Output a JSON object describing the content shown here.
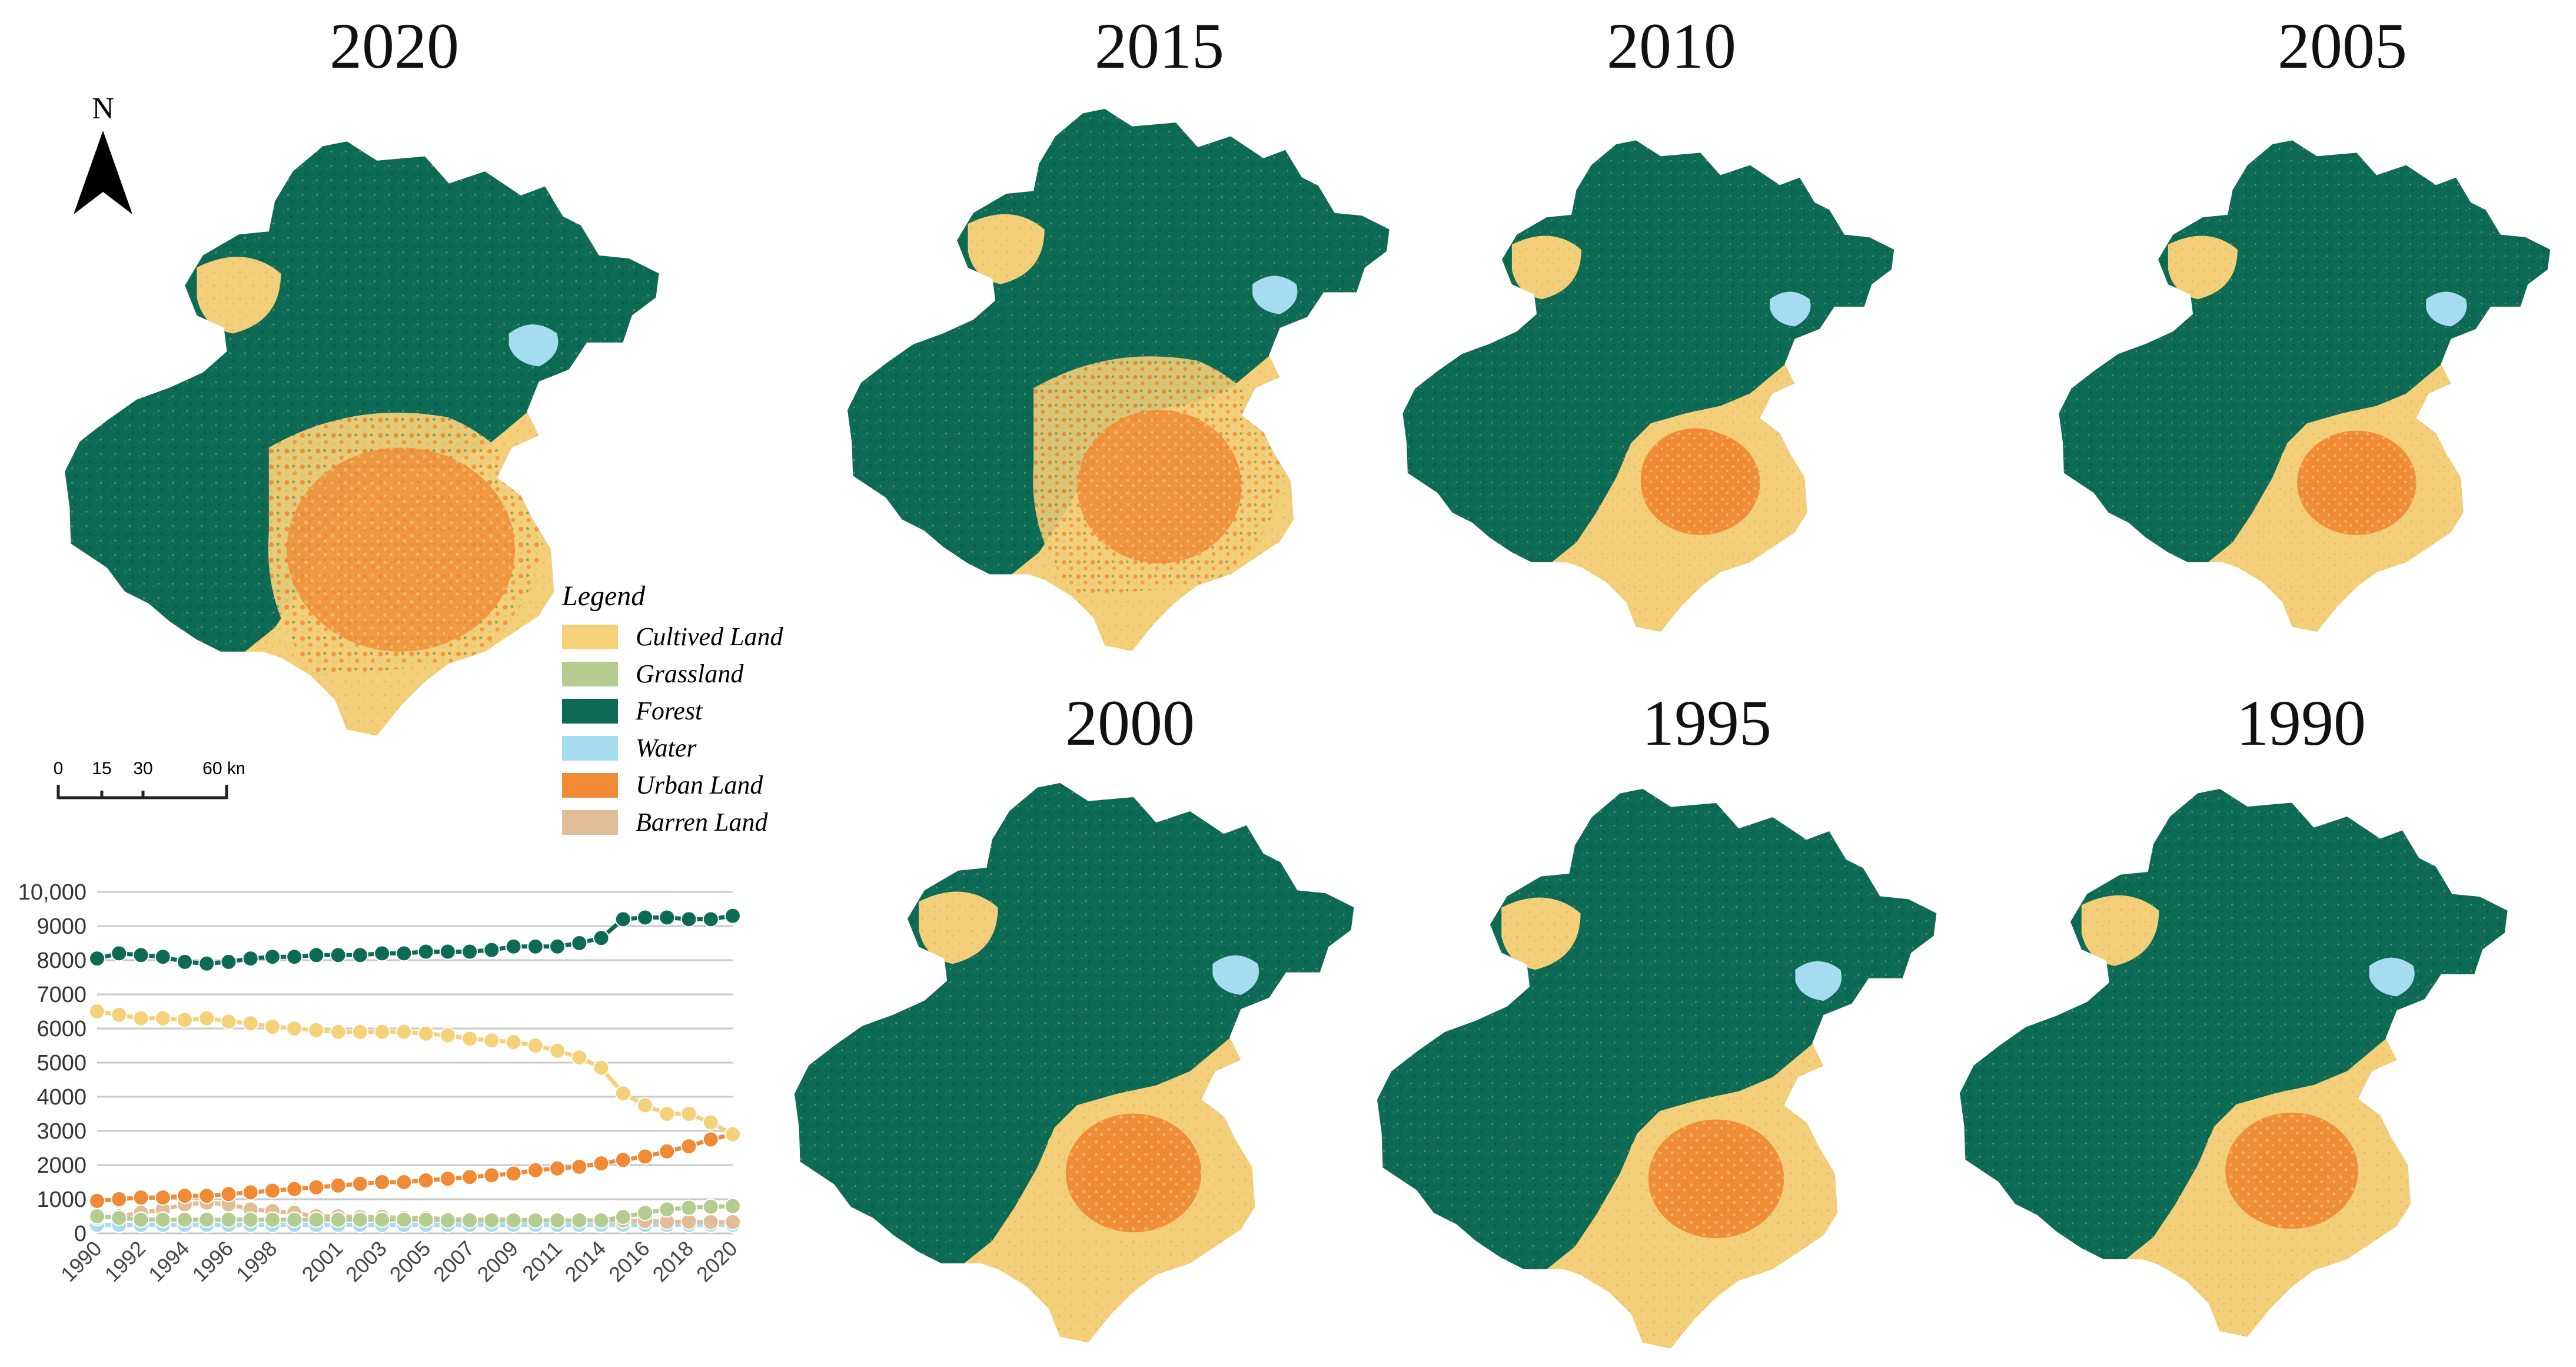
{
  "maps": [
    {
      "id": "map-2020",
      "year": "2020"
    },
    {
      "id": "map-2015",
      "year": "2015"
    },
    {
      "id": "map-2010",
      "year": "2010"
    },
    {
      "id": "map-2005",
      "year": "2005"
    },
    {
      "id": "map-2000",
      "year": "2000"
    },
    {
      "id": "map-1995",
      "year": "1995"
    },
    {
      "id": "map-1990",
      "year": "1990"
    }
  ],
  "north_arrow": {
    "label": "N"
  },
  "scale_bar": {
    "ticks": [
      "0",
      "15",
      "30",
      "60 km"
    ]
  },
  "legend": {
    "title": "Legend",
    "items": [
      {
        "label": "Cultived Land",
        "color": "#f5d27a"
      },
      {
        "label": "Grassland",
        "color": "#b5cc90"
      },
      {
        "label": "Forest",
        "color": "#0d6b55"
      },
      {
        "label": "Water",
        "color": "#a6dcf0"
      },
      {
        "label": "Urban Land",
        "color": "#f08a35"
      },
      {
        "label": "Barren Land",
        "color": "#e1bd98"
      }
    ]
  },
  "chart_data": {
    "type": "line",
    "x": [
      "1990",
      "1991",
      "1992",
      "1993",
      "1994",
      "1995",
      "1996",
      "1997",
      "1998",
      "1999",
      "2000",
      "2001",
      "2002",
      "2003",
      "2004",
      "2005",
      "2006",
      "2007",
      "2008",
      "2009",
      "2010",
      "2011",
      "2012",
      "2014",
      "2015",
      "2016",
      "2017",
      "2018",
      "2019",
      "2020"
    ],
    "x_tick_labels": [
      "1990",
      "1992",
      "1994",
      "1996",
      "1998",
      "2001",
      "2003",
      "2005",
      "2007",
      "2009",
      "2011",
      "2014",
      "2016",
      "2018",
      "2020"
    ],
    "y_ticks": [
      "0",
      "1000",
      "2000",
      "3000",
      "4000",
      "5000",
      "6000",
      "7000",
      "8000",
      "9000",
      "10,000"
    ],
    "ylim": [
      0,
      10000
    ],
    "grid": true,
    "series": [
      {
        "name": "Forest",
        "color": "#0d6b55",
        "values": [
          8050,
          8200,
          8150,
          8100,
          7950,
          7900,
          7950,
          8050,
          8100,
          8100,
          8150,
          8150,
          8150,
          8200,
          8200,
          8250,
          8250,
          8250,
          8300,
          8400,
          8400,
          8400,
          8500,
          8650,
          9200,
          9250,
          9250,
          9200,
          9200,
          9300
        ]
      },
      {
        "name": "Cultived Land",
        "color": "#f5d27a",
        "values": [
          6500,
          6400,
          6300,
          6300,
          6250,
          6300,
          6200,
          6150,
          6050,
          6000,
          5950,
          5900,
          5900,
          5900,
          5900,
          5850,
          5800,
          5700,
          5650,
          5600,
          5500,
          5350,
          5150,
          4850,
          4100,
          3750,
          3500,
          3500,
          3250,
          2900
        ]
      },
      {
        "name": "Urban Land",
        "color": "#f08a35",
        "values": [
          950,
          1000,
          1050,
          1050,
          1100,
          1100,
          1150,
          1200,
          1250,
          1300,
          1350,
          1400,
          1450,
          1500,
          1500,
          1550,
          1600,
          1650,
          1700,
          1750,
          1850,
          1900,
          1950,
          2050,
          2150,
          2250,
          2400,
          2550,
          2750,
          2900
        ]
      },
      {
        "name": "Grassland",
        "color": "#b5cc90",
        "values": [
          500,
          450,
          400,
          400,
          400,
          400,
          400,
          400,
          400,
          400,
          400,
          400,
          400,
          400,
          400,
          400,
          380,
          380,
          380,
          380,
          380,
          380,
          380,
          380,
          480,
          600,
          700,
          750,
          780,
          800
        ]
      },
      {
        "name": "Barren Land",
        "color": "#e1bd98",
        "values": [
          450,
          500,
          600,
          700,
          850,
          900,
          850,
          700,
          650,
          600,
          500,
          500,
          480,
          480,
          450,
          450,
          420,
          400,
          400,
          400,
          380,
          380,
          380,
          380,
          380,
          360,
          340,
          340,
          330,
          330
        ]
      },
      {
        "name": "Water",
        "color": "#a6dcf0",
        "values": [
          250,
          250,
          250,
          250,
          250,
          250,
          250,
          250,
          250,
          250,
          250,
          250,
          250,
          250,
          250,
          250,
          250,
          250,
          250,
          250,
          250,
          250,
          250,
          250,
          250,
          250,
          250,
          250,
          250,
          250
        ]
      }
    ]
  }
}
